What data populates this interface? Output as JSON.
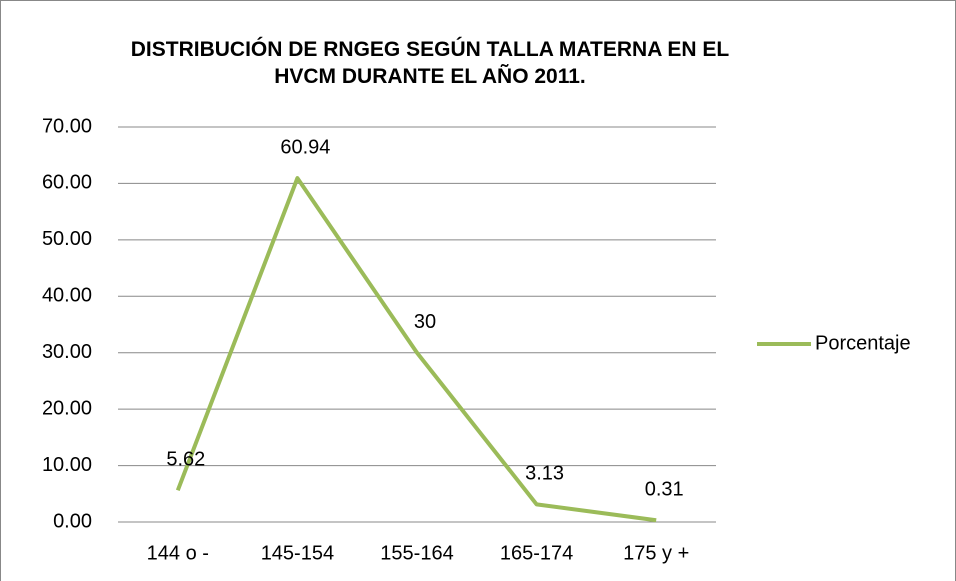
{
  "chart_data": {
    "type": "line",
    "title": "DISTRIBUCIÓN DE RNGEG SEGÚN TALLA MATERNA EN EL HVCM DURANTE EL AÑO 2011.",
    "categories": [
      "144 o -",
      "145-154",
      "155-164",
      "165-174",
      "175 y +"
    ],
    "series": [
      {
        "name": "Porcentaje",
        "color": "#9bbb59",
        "values": [
          5.62,
          60.94,
          30,
          3.13,
          0.31
        ]
      }
    ],
    "ylim": [
      0,
      70
    ],
    "yticks": [
      {
        "value": 0,
        "label": "0.00"
      },
      {
        "value": 10,
        "label": "10.00"
      },
      {
        "value": 20,
        "label": "20.00"
      },
      {
        "value": 30,
        "label": "30.00"
      },
      {
        "value": 40,
        "label": "40.00"
      },
      {
        "value": 50,
        "label": "50.00"
      },
      {
        "value": 60,
        "label": "60.00"
      },
      {
        "value": 70,
        "label": "70.00"
      }
    ],
    "grid": true,
    "legend": "right"
  }
}
